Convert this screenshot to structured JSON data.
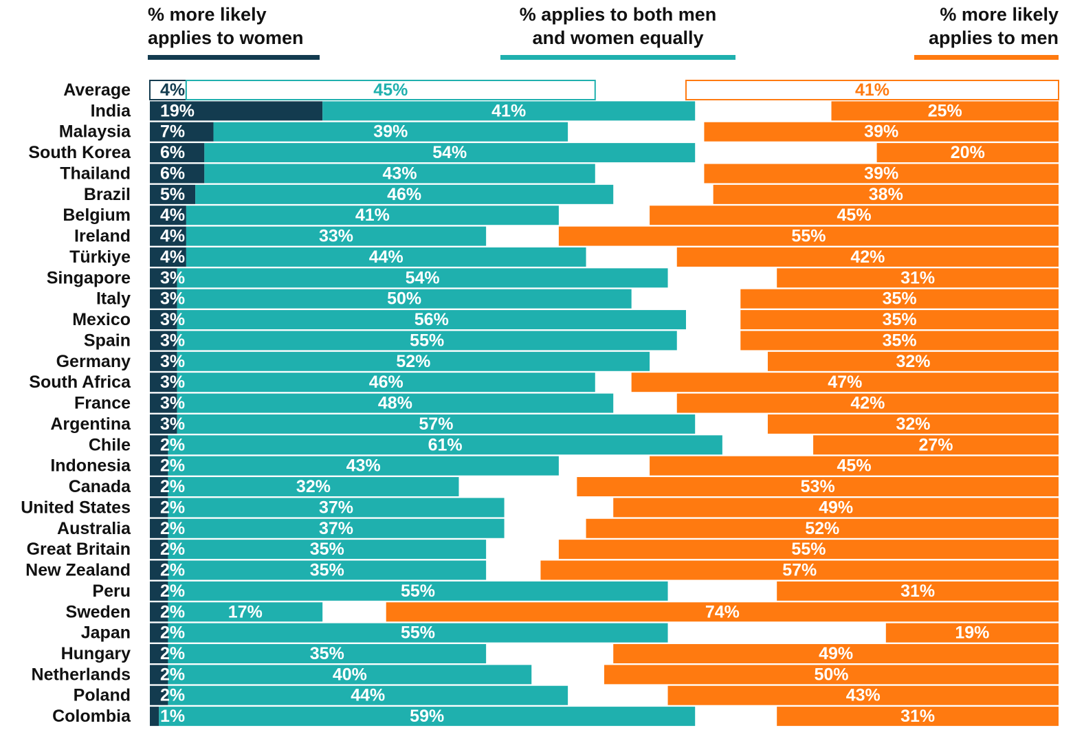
{
  "chart_data": {
    "type": "bar",
    "orientation": "horizontal",
    "layout": "women-left-men-right",
    "xlim": [
      0,
      100
    ],
    "first_row_outlined": true,
    "categories": [
      "Average",
      "India",
      "Malaysia",
      "South Korea",
      "Thailand",
      "Brazil",
      "Belgium",
      "Ireland",
      "Türkiye",
      "Singapore",
      "Italy",
      "Mexico",
      "Spain",
      "Germany",
      "South Africa",
      "France",
      "Argentina",
      "Chile",
      "Indonesia",
      "Canada",
      "United States",
      "Australia",
      "Great Britain",
      "New Zealand",
      "Peru",
      "Sweden",
      "Japan",
      "Hungary",
      "Netherlands",
      "Poland",
      "Colombia"
    ],
    "series": [
      {
        "name": "% more likely applies to women",
        "color": "#133b4f",
        "values": [
          4,
          19,
          7,
          6,
          6,
          5,
          4,
          4,
          4,
          3,
          3,
          3,
          3,
          3,
          3,
          3,
          3,
          2,
          2,
          2,
          2,
          2,
          2,
          2,
          2,
          2,
          2,
          2,
          2,
          2,
          1
        ],
        "value_labels": [
          "4%",
          "19%",
          "7%",
          "6%",
          "6%",
          "5%",
          "4%",
          "4%",
          "4%",
          "3%",
          "3%",
          "3%",
          "3%",
          "3%",
          "3%",
          "3%",
          "3%",
          "2%",
          "2%",
          "2%",
          "2%",
          "2%",
          "2%",
          "2%",
          "2%",
          "2%",
          "2%",
          "2%",
          "2%",
          "2%",
          "1%"
        ]
      },
      {
        "name": "% applies to both men and women equally",
        "color": "#1fb0ae",
        "values": [
          45,
          41,
          39,
          54,
          43,
          46,
          41,
          33,
          44,
          54,
          50,
          56,
          55,
          52,
          46,
          48,
          57,
          61,
          43,
          32,
          37,
          37,
          35,
          35,
          55,
          17,
          55,
          35,
          40,
          44,
          59
        ],
        "value_labels": [
          "45%",
          "41%",
          "39%",
          "54%",
          "43%",
          "46%",
          "41%",
          "33%",
          "44%",
          "54%",
          "50%",
          "56%",
          "55%",
          "52%",
          "46%",
          "48%",
          "57%",
          "61%",
          "43%",
          "32%",
          "37%",
          "37%",
          "35%",
          "35%",
          "55%",
          "17%",
          "55%",
          "35%",
          "40%",
          "44%",
          "59%"
        ]
      },
      {
        "name": "% more likely applies to men",
        "color": "#ff7a10",
        "values": [
          41,
          25,
          39,
          20,
          39,
          38,
          45,
          55,
          42,
          31,
          35,
          35,
          35,
          32,
          47,
          42,
          32,
          27,
          45,
          53,
          49,
          52,
          55,
          57,
          31,
          74,
          19,
          49,
          50,
          43,
          31
        ],
        "value_labels": [
          "41%",
          "25%",
          "39%",
          "20%",
          "39%",
          "38%",
          "45%",
          "55%",
          "42%",
          "31%",
          "35%",
          "35%",
          "35%",
          "32%",
          "47%",
          "42%",
          "32%",
          "27%",
          "45%",
          "53%",
          "49%",
          "52%",
          "55%",
          "57%",
          "31%",
          "74%",
          "19%",
          "49%",
          "50%",
          "43%",
          "31%"
        ]
      }
    ]
  }
}
